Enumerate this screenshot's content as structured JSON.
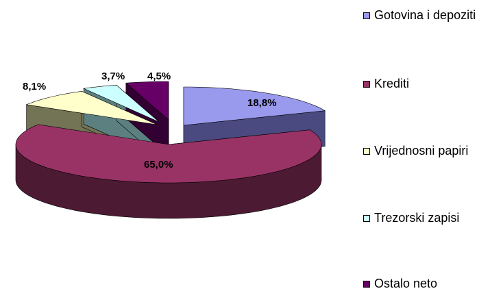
{
  "chart_data": {
    "type": "pie",
    "variant": "3d-exploded",
    "categories": [
      "Gotovina i depoziti",
      "Krediti",
      "Vrijednosni papiri",
      "Trezorski zapisi",
      "Ostalo neto"
    ],
    "values": [
      18.8,
      65.0,
      8.1,
      3.7,
      4.5
    ],
    "data_labels": [
      "18,8%",
      "65,0%",
      "8,1%",
      "3,7%",
      "4,5%"
    ],
    "colors": [
      "#9999ee",
      "#993366",
      "#ffffcc",
      "#ccffff",
      "#660066"
    ],
    "side_colors": [
      "#4a4a80",
      "#4d1a33",
      "#737355",
      "#5c8080",
      "#330033"
    ],
    "legend_position": "right",
    "title": ""
  }
}
